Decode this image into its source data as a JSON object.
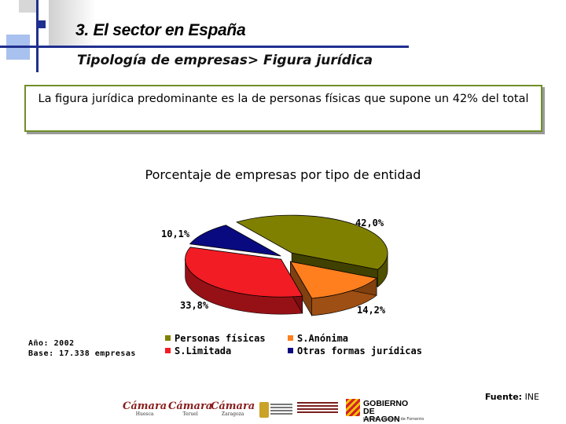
{
  "header": {
    "title": "3. El sector en España",
    "subtitle": "Tipología de empresas> Figura jurídica"
  },
  "highlight": {
    "text_before": "La figura jurídica predominante es la de ",
    "text_emphasis": "personas físicas",
    "text_after": " que supone un 42% del total"
  },
  "chart_data": {
    "type": "pie",
    "title": "Porcentaje de empresas por tipo de entidad",
    "slices": [
      {
        "label": "Personas físicas",
        "value": 42.0,
        "display": "42,0%",
        "color": "#808000"
      },
      {
        "label": "S.Anónima",
        "value": 14.2,
        "display": "14,2%",
        "color": "#ff7f1e"
      },
      {
        "label": "S.Limitada",
        "value": 33.8,
        "display": "33,8%",
        "color": "#f21c24"
      },
      {
        "label": "Otras formas jurídicas",
        "value": 10.1,
        "display": "10,1%",
        "color": "#0a0a80"
      }
    ],
    "legend_placement": "bottom"
  },
  "notes": {
    "year": "Año: 2002",
    "base": "Base: 17.338 empresas"
  },
  "source": {
    "label": "Fuente:",
    "value": "INE"
  },
  "logos": {
    "camara_1": "Cámara",
    "camara_1_city": "Huesca",
    "camara_2": "Cámara",
    "camara_2_city": "Teruel",
    "camara_3": "Cámara",
    "camara_3_city": "Zaragoza",
    "aragon": "GOBIERNO DE ARAGON",
    "aragon_dept": "Instituto Aragonés de Fomento"
  }
}
